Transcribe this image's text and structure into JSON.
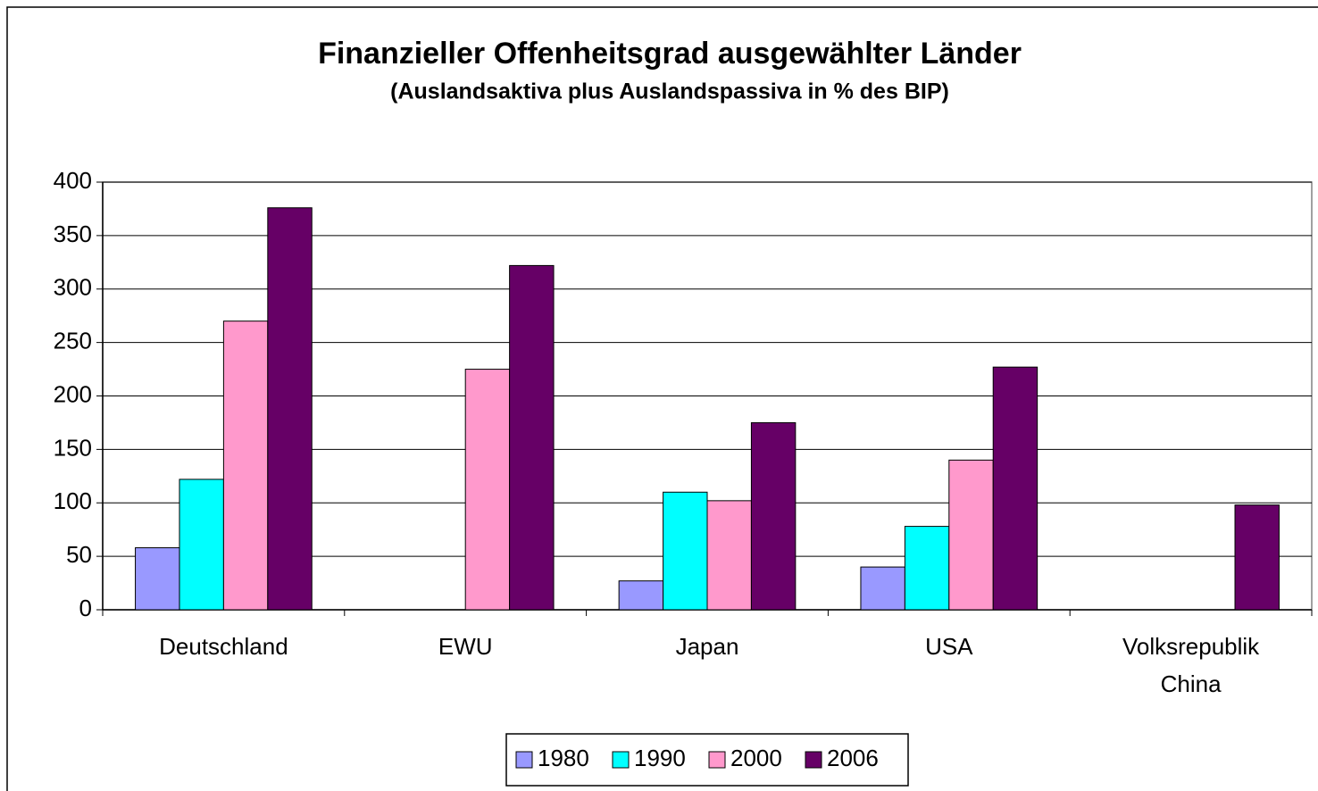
{
  "chart_data": {
    "type": "bar",
    "title": "Finanzieller Offenheitsgrad ausgewählter Länder",
    "subtitle": "(Auslandsaktiva plus Auslandspassiva in % des BIP)",
    "categories": [
      "Deutschland",
      "EWU",
      "Japan",
      "USA",
      "Volksrepublik China"
    ],
    "series": [
      {
        "name": "1980",
        "color": "#9999ff",
        "values": [
          58,
          null,
          27,
          40,
          null
        ]
      },
      {
        "name": "1990",
        "color": "#00ffff",
        "values": [
          122,
          null,
          110,
          78,
          null
        ]
      },
      {
        "name": "2000",
        "color": "#ff99cc",
        "values": [
          270,
          225,
          102,
          140,
          null
        ]
      },
      {
        "name": "2006",
        "color": "#660066",
        "values": [
          376,
          322,
          175,
          227,
          98
        ]
      }
    ],
    "ylim": [
      0,
      400
    ],
    "yticks": [
      0,
      50,
      100,
      150,
      200,
      250,
      300,
      350,
      400
    ],
    "grid": true,
    "legend": "bottom"
  }
}
